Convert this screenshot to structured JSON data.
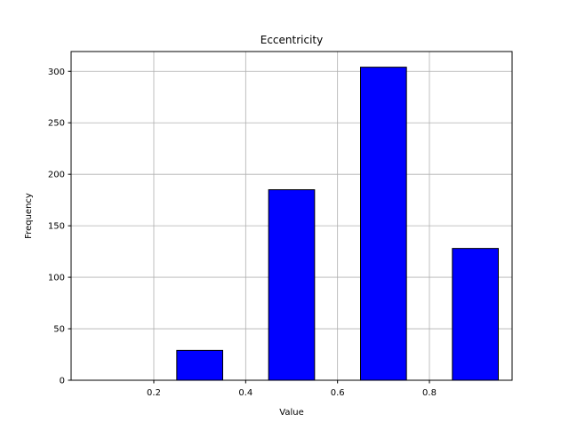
{
  "chart_data": {
    "type": "bar",
    "title": "Eccentricity",
    "xlabel": "Value",
    "ylabel": "Frequency",
    "bins": [
      {
        "x_start": 0.05,
        "x_end": 0.15,
        "value": 0
      },
      {
        "x_start": 0.25,
        "x_end": 0.35,
        "value": 29
      },
      {
        "x_start": 0.45,
        "x_end": 0.55,
        "value": 185
      },
      {
        "x_start": 0.65,
        "x_end": 0.75,
        "value": 304
      },
      {
        "x_start": 0.85,
        "x_end": 0.95,
        "value": 128
      }
    ],
    "xlim": [
      0.02,
      0.98
    ],
    "ylim": [
      0,
      319.2
    ],
    "x_ticks": [
      {
        "value": 0.2,
        "label": "0.2"
      },
      {
        "value": 0.4,
        "label": "0.4"
      },
      {
        "value": 0.6,
        "label": "0.6"
      },
      {
        "value": 0.8,
        "label": "0.8"
      }
    ],
    "y_ticks": [
      {
        "value": 0,
        "label": "0"
      },
      {
        "value": 50,
        "label": "50"
      },
      {
        "value": 100,
        "label": "100"
      },
      {
        "value": 150,
        "label": "150"
      },
      {
        "value": 200,
        "label": "200"
      },
      {
        "value": 250,
        "label": "250"
      },
      {
        "value": 300,
        "label": "300"
      }
    ],
    "grid": true,
    "colors": {
      "bar_fill": "#0000ff",
      "bar_edge": "#000000",
      "grid": "#b0b0b0",
      "axes": "#000000"
    }
  }
}
